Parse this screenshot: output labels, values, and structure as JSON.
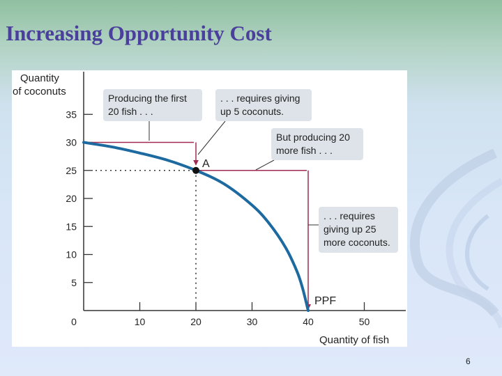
{
  "slide": {
    "title": "Increasing Opportunity Cost",
    "page_number": "6"
  },
  "colors": {
    "curve": "#1d6aa0",
    "arrow": "#a02a50",
    "callout_bg": "#dde3e8",
    "title": "#4a3f9c"
  },
  "chart_data": {
    "type": "line",
    "title": "",
    "xlabel": "Quantity of fish",
    "ylabel": [
      "Quantity",
      "of coconuts"
    ],
    "xlim": [
      0,
      57
    ],
    "ylim": [
      0,
      40
    ],
    "x_ticks": [
      10,
      20,
      30,
      40,
      50
    ],
    "y_ticks": [
      5,
      10,
      15,
      20,
      25,
      30,
      35
    ],
    "origin_label": "0",
    "grid": false,
    "series": [
      {
        "name": "PPF",
        "x": [
          0,
          5,
          10,
          15,
          20,
          25,
          30,
          33,
          36,
          38,
          39,
          40
        ],
        "y": [
          30,
          29.2,
          28.1,
          26.8,
          25,
          22.6,
          18.8,
          15.6,
          11.2,
          7,
          4,
          0
        ]
      }
    ],
    "points": [
      {
        "label": "A",
        "x": 20,
        "y": 25
      }
    ],
    "annotations": [
      {
        "lines": [
          "Producing the first",
          "20 fish . . ."
        ]
      },
      {
        "lines": [
          ". . . requires giving",
          "up 5 coconuts."
        ]
      },
      {
        "lines": [
          "But producing 20",
          "more fish . . ."
        ]
      },
      {
        "lines": [
          ". . . requires",
          "giving up 25",
          "more coconuts."
        ]
      }
    ]
  }
}
